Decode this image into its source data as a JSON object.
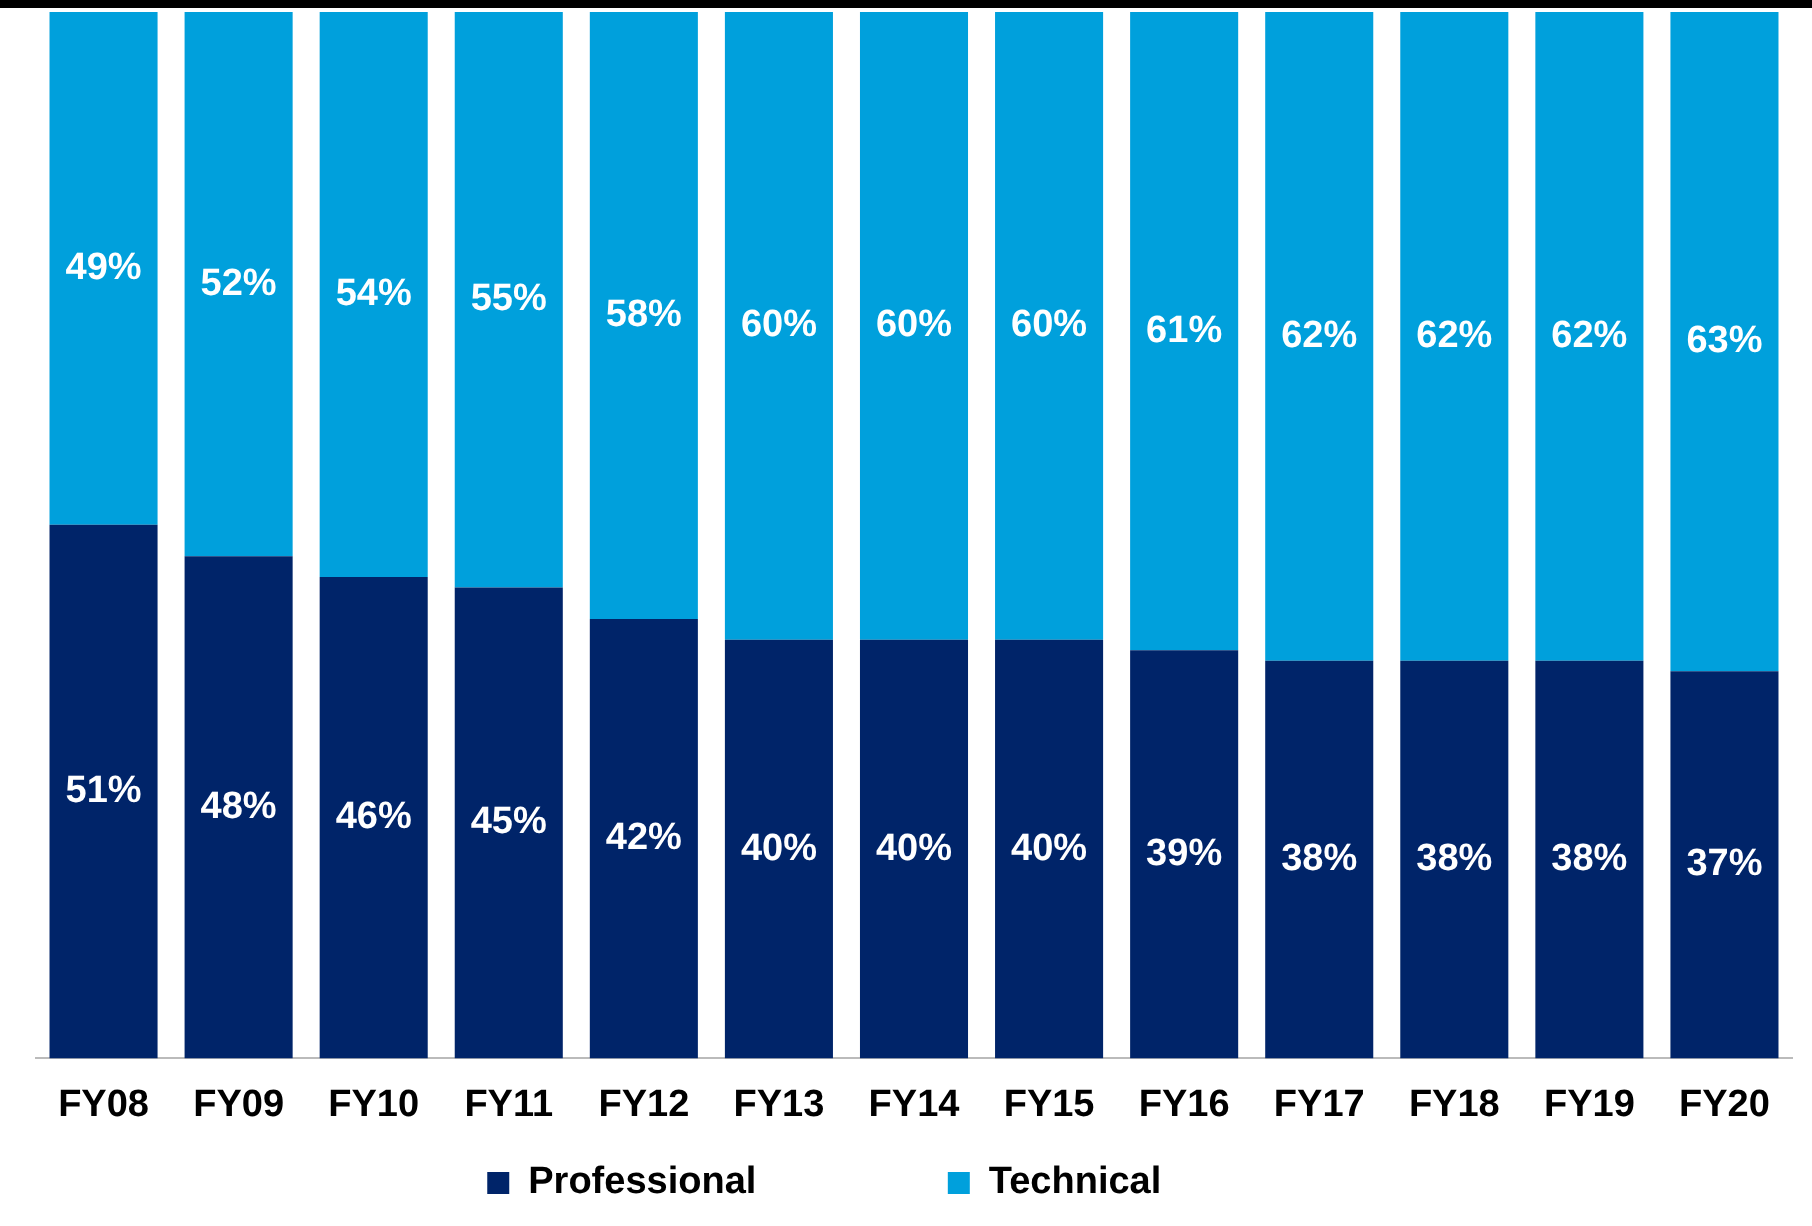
{
  "chart_data": {
    "type": "bar",
    "stacked": true,
    "legend": "bottom",
    "tick_labels": "x",
    "grid": false,
    "categories": [
      "FY08",
      "FY09",
      "FY10",
      "FY11",
      "FY12",
      "FY13",
      "FY14",
      "FY15",
      "FY16",
      "FY17",
      "FY18",
      "FY19",
      "FY20"
    ],
    "series": [
      {
        "name": "Professional",
        "color": "#002469",
        "values": [
          51,
          48,
          46,
          45,
          42,
          40,
          40,
          40,
          39,
          38,
          38,
          38,
          37
        ],
        "value_labels": [
          "51%",
          "48%",
          "46%",
          "45%",
          "42%",
          "40%",
          "40%",
          "40%",
          "39%",
          "38%",
          "38%",
          "38%",
          "37%"
        ]
      },
      {
        "name": "Technical",
        "color": "#00a0dc",
        "values": [
          49,
          52,
          54,
          55,
          58,
          60,
          60,
          60,
          61,
          62,
          62,
          62,
          63
        ],
        "value_labels": [
          "49%",
          "52%",
          "54%",
          "55%",
          "58%",
          "60%",
          "60%",
          "60%",
          "61%",
          "62%",
          "62%",
          "62%",
          "63%"
        ]
      }
    ]
  }
}
